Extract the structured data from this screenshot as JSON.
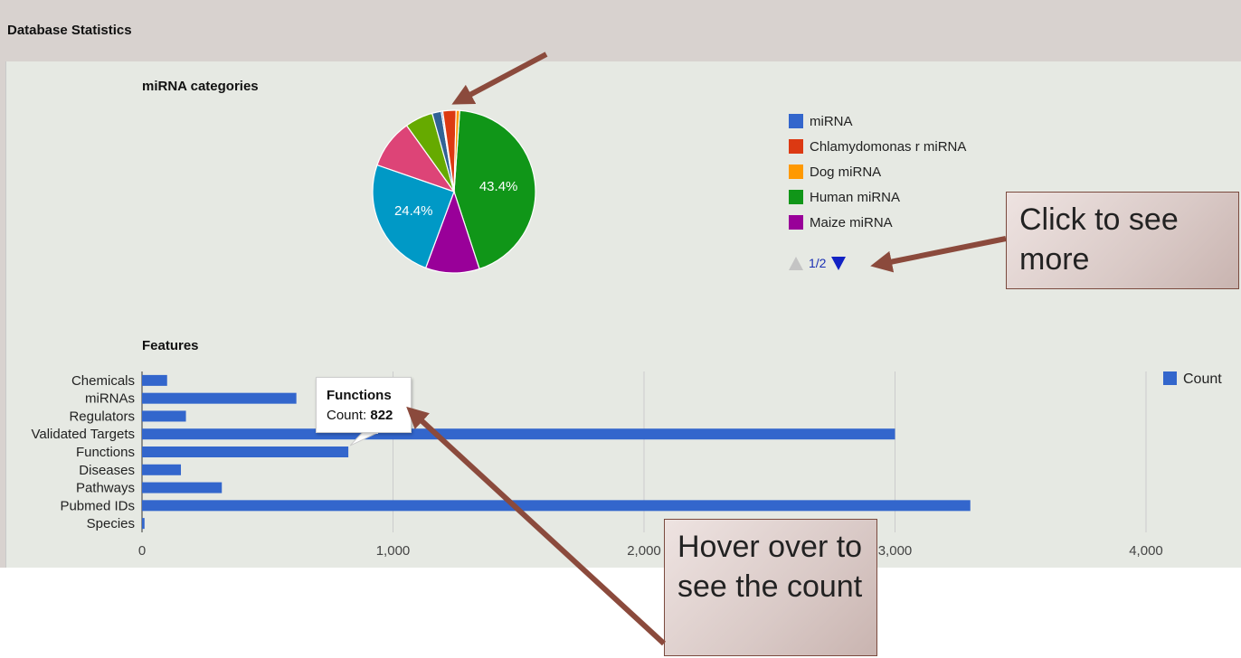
{
  "header": {
    "title": "Database Statistics"
  },
  "pie_chart": {
    "title": "miRNA categories",
    "slices": [
      {
        "label": "Human miRNA",
        "value": 43.4,
        "color": "#109618",
        "text": "43.4%"
      },
      {
        "label": "Maize miRNA",
        "value": 10.6,
        "color": "#990099",
        "text": ""
      },
      {
        "label": "",
        "value": 24.4,
        "color": "#0099c6",
        "text": "24.4%"
      },
      {
        "label": "",
        "value": 9.7,
        "color": "#dd4477",
        "text": ""
      },
      {
        "label": "",
        "value": 5.5,
        "color": "#66aa00",
        "text": ""
      },
      {
        "label": "",
        "value": 1.8,
        "color": "#316395",
        "text": ""
      },
      {
        "label": "miRNA",
        "value": 0.3,
        "color": "#3366cc",
        "text": ""
      },
      {
        "label": "Chlamydomonas r miRNA",
        "value": 2.6,
        "color": "#dc3912",
        "text": ""
      },
      {
        "label": "Dog miRNA",
        "value": 0.7,
        "color": "#ff9900",
        "text": ""
      }
    ],
    "legend": [
      {
        "label": "miRNA",
        "color": "#3366cc"
      },
      {
        "label": "Chlamydomonas r miRNA",
        "color": "#dc3912"
      },
      {
        "label": "Dog miRNA",
        "color": "#ff9900"
      },
      {
        "label": "Human miRNA",
        "color": "#109618"
      },
      {
        "label": "Maize miRNA",
        "color": "#990099"
      }
    ],
    "pager": "1/2"
  },
  "chart_data": {
    "type": "bar",
    "title": "Features",
    "orientation": "horizontal",
    "categories": [
      "Chemicals",
      "miRNAs",
      "Regulators",
      "Validated Targets",
      "Functions",
      "Diseases",
      "Pathways",
      "Pubmed IDs",
      "Species"
    ],
    "series": [
      {
        "name": "Count",
        "color": "#3366cc",
        "values": [
          100,
          615,
          175,
          3000,
          822,
          155,
          318,
          3300,
          10
        ]
      }
    ],
    "xlim": [
      0,
      4000
    ],
    "x_ticks": [
      0,
      1000,
      2000,
      3000,
      4000
    ],
    "x_tick_labels": [
      "0",
      "1,000",
      "2,000",
      "3,000",
      "4,000"
    ],
    "grid": true,
    "legend_position": "right"
  },
  "tooltip": {
    "title": "Functions",
    "count_label": "Count:",
    "count_value": "822"
  },
  "callouts": {
    "more": "Click to see more",
    "hover": "Hover over to see the count"
  }
}
